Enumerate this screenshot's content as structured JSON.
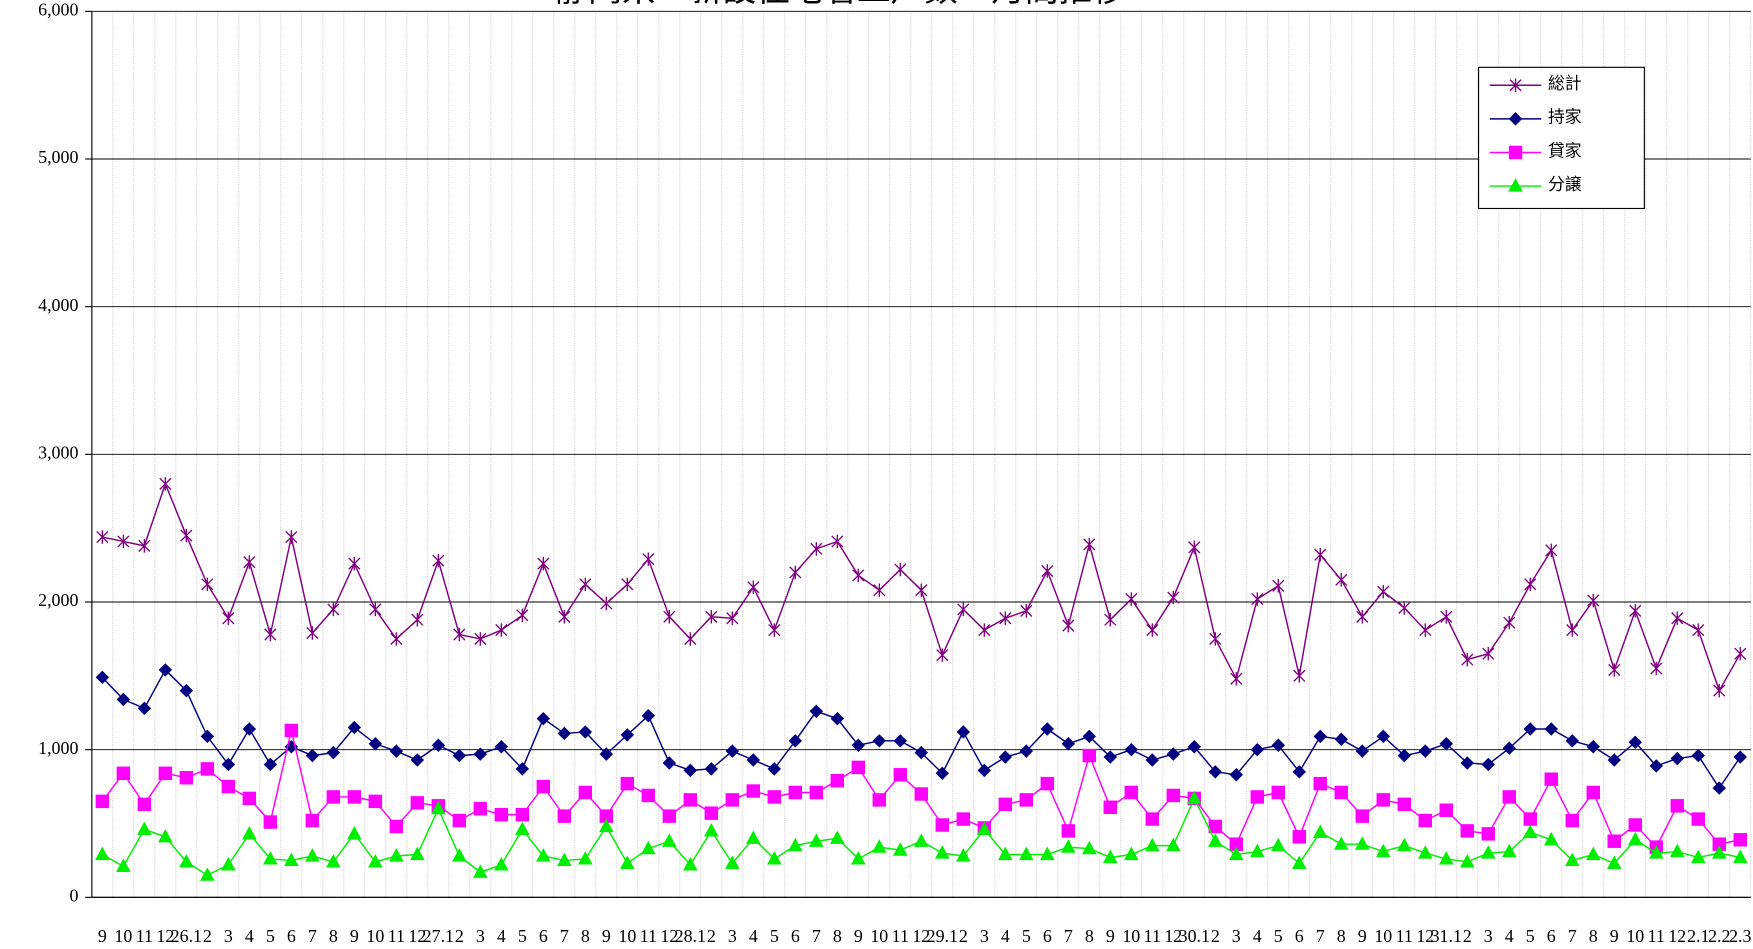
{
  "chart_data": {
    "type": "line",
    "title": "静岡県　新設住宅着工戸数　月間推移",
    "categories": [
      "9",
      "10",
      "11",
      "12",
      "26.1",
      "2",
      "3",
      "4",
      "5",
      "6",
      "7",
      "8",
      "9",
      "10",
      "11",
      "12",
      "27.1",
      "2",
      "3",
      "4",
      "5",
      "6",
      "7",
      "8",
      "9",
      "10",
      "11",
      "12",
      "28.1",
      "2",
      "3",
      "4",
      "5",
      "6",
      "7",
      "8",
      "9",
      "10",
      "11",
      "12",
      "29.1",
      "2",
      "3",
      "4",
      "5",
      "6",
      "7",
      "8",
      "9",
      "10",
      "11",
      "12",
      "30.1",
      "2",
      "3",
      "4",
      "5",
      "6",
      "7",
      "8",
      "9",
      "10",
      "11",
      "12",
      "31.1",
      "2",
      "3",
      "4",
      "5",
      "6",
      "7",
      "8",
      "9",
      "10",
      "11",
      "12",
      "2.1",
      "2.2",
      "2.3"
    ],
    "series": [
      {
        "name": "総計",
        "color": "#800080",
        "marker": "star",
        "values": [
          2440,
          2410,
          2380,
          2800,
          2450,
          2120,
          1890,
          2270,
          1780,
          2440,
          1790,
          1950,
          2260,
          1950,
          1750,
          1880,
          2280,
          1780,
          1750,
          1810,
          1910,
          2260,
          1900,
          2120,
          1990,
          2120,
          2290,
          1900,
          1750,
          1900,
          1890,
          2100,
          1810,
          2200,
          2360,
          2410,
          2180,
          2080,
          2220,
          2080,
          1640,
          1950,
          1810,
          1890,
          1940,
          2210,
          1840,
          2390,
          1880,
          2020,
          1810,
          2030,
          2370,
          1750,
          1480,
          2020,
          2110,
          1500,
          2320,
          2150,
          1900,
          2070,
          1960,
          1810,
          1900,
          1610,
          1650,
          1860,
          2120,
          2350,
          1810,
          2010,
          1540,
          1940,
          1550,
          1890,
          1810,
          1400,
          1650
        ]
      },
      {
        "name": "持家",
        "color": "#000080",
        "marker": "diamond",
        "values": [
          1490,
          1340,
          1280,
          1540,
          1400,
          1090,
          900,
          1140,
          900,
          1020,
          960,
          980,
          1150,
          1040,
          990,
          930,
          1030,
          960,
          970,
          1020,
          870,
          1210,
          1110,
          1120,
          970,
          1100,
          1230,
          910,
          860,
          870,
          990,
          930,
          870,
          1060,
          1260,
          1210,
          1030,
          1060,
          1060,
          980,
          840,
          1120,
          860,
          950,
          990,
          1140,
          1040,
          1090,
          950,
          1000,
          930,
          970,
          1020,
          850,
          830,
          1000,
          1030,
          850,
          1090,
          1070,
          990,
          1090,
          960,
          990,
          1040,
          910,
          900,
          1010,
          1140,
          1140,
          1060,
          1020,
          930,
          1050,
          890,
          940,
          960,
          740,
          950
        ]
      },
      {
        "name": "貸家",
        "color": "#ff00ff",
        "marker": "square",
        "values": [
          650,
          840,
          630,
          840,
          810,
          870,
          750,
          670,
          510,
          1130,
          520,
          680,
          680,
          650,
          480,
          640,
          620,
          520,
          600,
          560,
          560,
          750,
          550,
          710,
          550,
          770,
          690,
          550,
          660,
          570,
          660,
          720,
          680,
          710,
          710,
          790,
          880,
          660,
          830,
          700,
          490,
          530,
          470,
          630,
          660,
          770,
          450,
          960,
          610,
          710,
          530,
          690,
          670,
          480,
          360,
          680,
          710,
          410,
          770,
          710,
          550,
          660,
          630,
          520,
          590,
          450,
          430,
          680,
          530,
          800,
          520,
          710,
          380,
          490,
          340,
          620,
          530,
          360,
          390
        ]
      },
      {
        "name": "分譲",
        "color": "#00ee00",
        "marker": "triangle",
        "values": [
          290,
          210,
          460,
          410,
          240,
          150,
          220,
          430,
          260,
          250,
          280,
          240,
          430,
          240,
          280,
          290,
          600,
          280,
          170,
          220,
          460,
          280,
          250,
          260,
          480,
          230,
          330,
          380,
          220,
          450,
          230,
          400,
          260,
          350,
          380,
          400,
          260,
          340,
          320,
          380,
          300,
          280,
          460,
          290,
          290,
          290,
          340,
          330,
          270,
          290,
          350,
          350,
          670,
          380,
          290,
          310,
          350,
          230,
          440,
          360,
          360,
          310,
          350,
          300,
          260,
          240,
          300,
          310,
          440,
          390,
          250,
          290,
          230,
          390,
          300,
          310,
          270,
          300,
          270
        ]
      }
    ],
    "ylim": [
      0,
      6000
    ],
    "yticks": [
      0,
      {
        "value": 1000,
        "label": "1,000"
      },
      {
        "value": 2000,
        "label": "2,000"
      },
      {
        "value": 3000,
        "label": "3,000"
      },
      {
        "value": 4000,
        "label": "4,000"
      },
      {
        "value": 5000,
        "label": "5,000"
      },
      {
        "value": 6000,
        "label": "6,000"
      }
    ],
    "grid": true,
    "legend": "upper-right"
  }
}
